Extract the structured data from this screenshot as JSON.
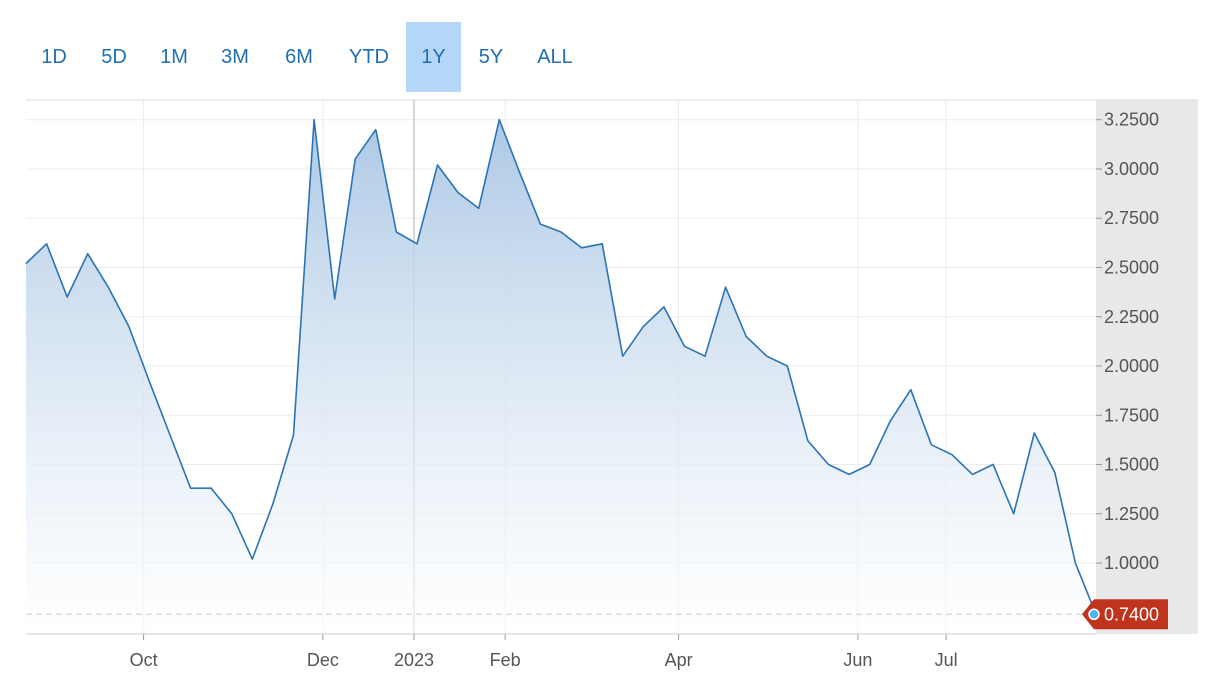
{
  "range_buttons": [
    {
      "label": "1D",
      "active": false
    },
    {
      "label": "5D",
      "active": false
    },
    {
      "label": "1M",
      "active": false
    },
    {
      "label": "3M",
      "active": false
    },
    {
      "label": "6M",
      "active": false
    },
    {
      "label": "YTD",
      "active": false
    },
    {
      "label": "1Y",
      "active": true
    },
    {
      "label": "5Y",
      "active": false
    },
    {
      "label": "ALL",
      "active": false
    }
  ],
  "colors": {
    "line": "#2a73b5",
    "area_top": "#a9c6e4",
    "area_bottom": "#ffffff",
    "grid": "#ebebeb",
    "axis_panel": "#e8e8e8",
    "active_tab": "#b4d7f7",
    "tab_text": "#1f6fb2",
    "price_flag": "#c0341d",
    "price_dot": "#4cb7ec"
  },
  "chart_data": {
    "type": "area",
    "y_ticks": [
      "3.2500",
      "3.0000",
      "2.7500",
      "2.5000",
      "2.2500",
      "2.0000",
      "1.7500",
      "1.5000",
      "1.2500",
      "1.0000"
    ],
    "ylim": [
      0.64,
      3.35
    ],
    "x_ticks": [
      "Oct",
      "Dec",
      "2023",
      "Feb",
      "Apr",
      "Jun",
      "Jul"
    ],
    "last_price_label": "0.7400",
    "last_price": 0.74,
    "grid": true,
    "series": [
      {
        "x": [
          "2022-08-22",
          "2022-08-29",
          "2022-09-05",
          "2022-09-12",
          "2022-09-19",
          "2022-09-26",
          "2022-10-03",
          "2022-10-10",
          "2022-10-17",
          "2022-10-24",
          "2022-10-31",
          "2022-11-07",
          "2022-11-14",
          "2022-11-21",
          "2022-11-28",
          "2022-12-05",
          "2022-12-12",
          "2022-12-19",
          "2022-12-26",
          "2023-01-02",
          "2023-01-09",
          "2023-01-16",
          "2023-01-23",
          "2023-01-30",
          "2023-02-06",
          "2023-02-13",
          "2023-02-20",
          "2023-02-27",
          "2023-03-06",
          "2023-03-13",
          "2023-03-20",
          "2023-03-27",
          "2023-04-03",
          "2023-04-10",
          "2023-04-17",
          "2023-04-24",
          "2023-05-01",
          "2023-05-08",
          "2023-05-15",
          "2023-05-22",
          "2023-05-29",
          "2023-06-05",
          "2023-06-12",
          "2023-06-19",
          "2023-06-26",
          "2023-07-03",
          "2023-07-10",
          "2023-07-17",
          "2023-07-24",
          "2023-07-31",
          "2023-08-07",
          "2023-08-14",
          "2023-08-21"
        ],
        "values": [
          2.52,
          2.62,
          2.35,
          2.57,
          2.4,
          2.2,
          1.92,
          1.65,
          1.38,
          1.38,
          1.25,
          1.02,
          1.3,
          1.65,
          3.25,
          2.34,
          3.05,
          3.2,
          2.68,
          2.62,
          3.02,
          2.88,
          2.8,
          3.25,
          2.98,
          2.72,
          2.68,
          2.6,
          2.62,
          2.05,
          2.2,
          2.3,
          2.1,
          2.05,
          2.4,
          2.15,
          2.05,
          2.0,
          1.62,
          1.5,
          1.45,
          1.5,
          1.72,
          1.88,
          1.6,
          1.55,
          1.45,
          1.5,
          1.25,
          1.66,
          1.46,
          1.0,
          0.74
        ]
      }
    ]
  }
}
